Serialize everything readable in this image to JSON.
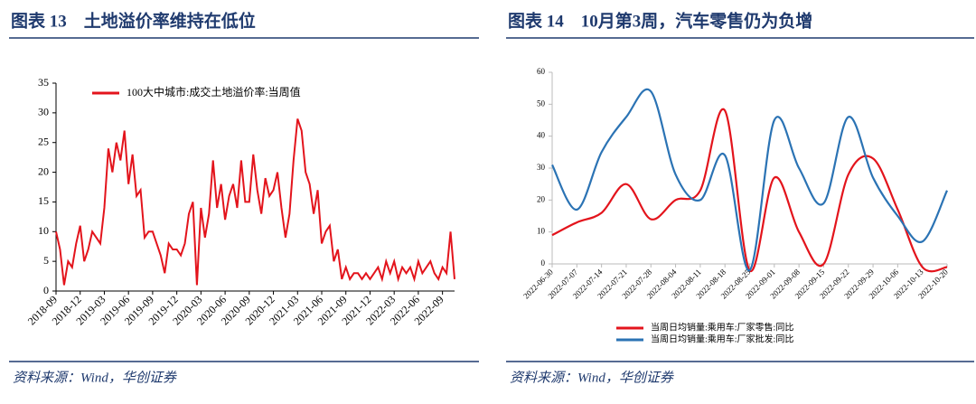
{
  "chart_data": [
    {
      "type": "line",
      "title": "图表 13　土地溢价率维持在低位",
      "source": "资料来源：Wind，华创证券",
      "legend": "top",
      "categories": [
        "2018-09",
        null,
        null,
        null,
        null,
        null,
        "2018-12",
        null,
        null,
        null,
        null,
        null,
        "2019-03",
        null,
        null,
        null,
        null,
        null,
        "2019-06",
        null,
        null,
        null,
        null,
        null,
        "2019-09",
        null,
        null,
        null,
        null,
        null,
        "2019-12",
        null,
        null,
        null,
        null,
        null,
        "2020-03",
        null,
        null,
        null,
        null,
        null,
        "2020-06",
        null,
        null,
        null,
        null,
        null,
        "2020-09",
        null,
        null,
        null,
        null,
        null,
        "2020-12",
        null,
        null,
        null,
        null,
        null,
        "2021-03",
        null,
        null,
        null,
        null,
        null,
        "2021-06",
        null,
        null,
        null,
        null,
        null,
        "2021-09",
        null,
        null,
        null,
        null,
        null,
        "2021-12",
        null,
        null,
        null,
        null,
        null,
        "2022-03",
        null,
        null,
        null,
        null,
        null,
        "2022-06",
        null,
        null,
        null,
        null,
        null,
        "2022-09",
        null,
        null,
        null
      ],
      "series": [
        {
          "name": "100大中城市:成交土地溢价率:当周值",
          "color": "#e3141c",
          "values": [
            10,
            7,
            1,
            5,
            4,
            8,
            11,
            5,
            7,
            10,
            9,
            8,
            14,
            24,
            20,
            25,
            22,
            27,
            18,
            23,
            16,
            17,
            9,
            10,
            10,
            8,
            6,
            3,
            8,
            7,
            7,
            6,
            8,
            13,
            15,
            1,
            14,
            9,
            13,
            22,
            14,
            18,
            12,
            16,
            18,
            14,
            22,
            15,
            15,
            23,
            17,
            13,
            19,
            16,
            17,
            20,
            14,
            9,
            13,
            22,
            29,
            27,
            20,
            18,
            13,
            17,
            8,
            10,
            11,
            5,
            7,
            2,
            4,
            2,
            3,
            3,
            2,
            3,
            2,
            3,
            4,
            2,
            5,
            3,
            5,
            2,
            4,
            3,
            4,
            2,
            5,
            3,
            4,
            5,
            3,
            2,
            4,
            3,
            10,
            2
          ]
        }
      ],
      "ylim": [
        0,
        35
      ],
      "yticks": [
        0,
        5,
        10,
        15,
        20,
        25,
        30,
        35
      ]
    },
    {
      "type": "line",
      "smooth": true,
      "title": "图表 14　10月第3周，汽车零售仍为负增",
      "source": "资料来源：Wind，华创证券",
      "legend": "bottom",
      "categories": [
        "2022-06-30",
        "2022-07-07",
        "2022-07-14",
        "2022-07-21",
        "2022-07-28",
        "2022-08-04",
        "2022-08-11",
        "2022-08-18",
        "2022-08-25",
        "2022-09-01",
        "2022-09-08",
        "2022-09-15",
        "2022-09-22",
        "2022-09-29",
        "2022-10-06",
        "2022-10-13",
        "2022-10-20"
      ],
      "series": [
        {
          "name": "当周日均销量:乘用车:厂家零售:同比",
          "color": "#e3141c",
          "values": [
            9,
            13,
            16,
            25,
            14,
            20,
            23,
            48,
            -2,
            27,
            10,
            0,
            28,
            33,
            17,
            -1,
            -1
          ]
        },
        {
          "name": "当周日均销量:乘用车:厂家批发:同比",
          "color": "#2b73b4",
          "values": [
            31,
            17,
            35,
            46,
            54,
            28,
            20,
            34,
            -2,
            45,
            30,
            19,
            46,
            27,
            15,
            7,
            23
          ]
        }
      ],
      "ylim": [
        0,
        60
      ],
      "yticks": [
        0,
        10,
        20,
        30,
        40,
        50,
        60
      ]
    }
  ]
}
